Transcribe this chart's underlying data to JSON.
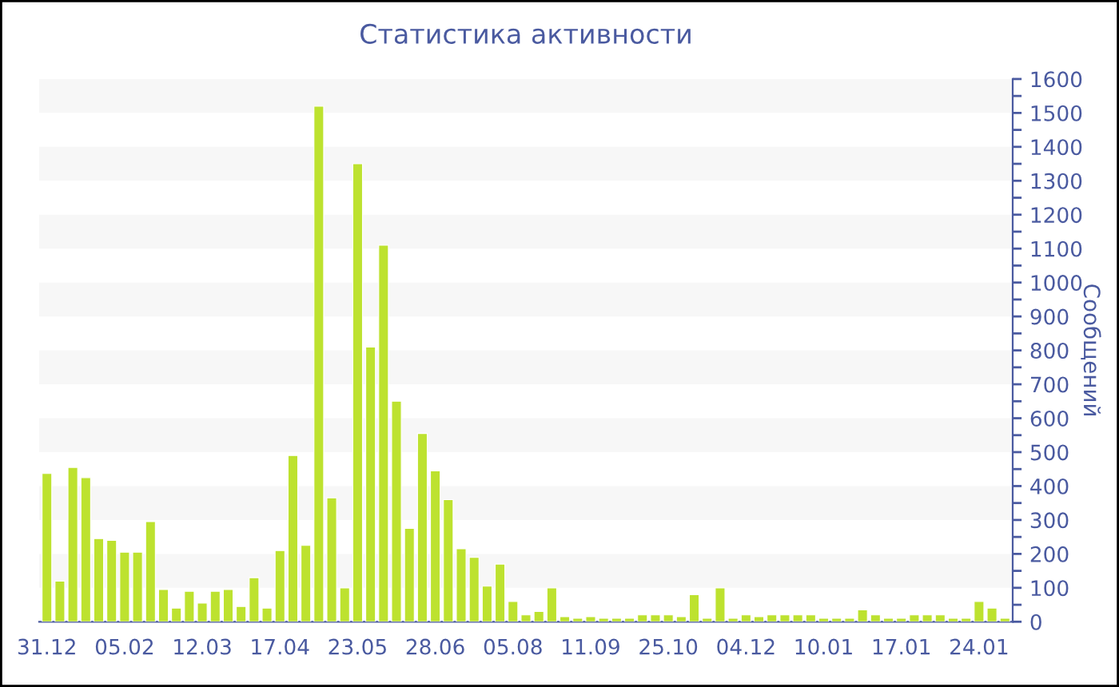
{
  "chart_data": {
    "type": "bar",
    "title": "Статистика активности",
    "ylabel": "Сообщений",
    "categories": [
      "31.12",
      null,
      null,
      null,
      null,
      null,
      "05.02",
      null,
      null,
      null,
      null,
      null,
      "12.03",
      null,
      null,
      null,
      null,
      null,
      "17.04",
      null,
      null,
      null,
      null,
      null,
      "23.05",
      null,
      null,
      null,
      null,
      null,
      "28.06",
      null,
      null,
      null,
      null,
      null,
      "05.08",
      null,
      null,
      null,
      null,
      null,
      "11.09",
      null,
      null,
      null,
      null,
      null,
      "25.10",
      null,
      null,
      null,
      null,
      null,
      "04.12",
      null,
      null,
      null,
      null,
      null,
      "10.01",
      null,
      null,
      null,
      null,
      null,
      "17.01",
      null,
      null,
      null,
      null,
      null,
      "24.01",
      null,
      null
    ],
    "values": [
      437,
      120,
      455,
      425,
      245,
      240,
      205,
      205,
      295,
      95,
      40,
      90,
      55,
      90,
      95,
      45,
      130,
      40,
      210,
      490,
      225,
      1520,
      365,
      100,
      1350,
      810,
      1110,
      650,
      275,
      555,
      445,
      360,
      215,
      190,
      105,
      170,
      60,
      20,
      30,
      100,
      15,
      10,
      15,
      10,
      10,
      10,
      20,
      20,
      20,
      15,
      80,
      10,
      100,
      10,
      20,
      15,
      20,
      20,
      20,
      20,
      10,
      10,
      10,
      35,
      20,
      10,
      10,
      20,
      20,
      20,
      10,
      10,
      60,
      40,
      10
    ],
    "color": "#bde22f",
    "ylim": [
      0,
      1600
    ],
    "yticks": [
      {
        "value": 0,
        "label": "0"
      },
      {
        "value": 50,
        "label": null
      },
      100,
      {
        "value": 150,
        "label": null
      },
      200,
      {
        "value": 250,
        "label": null
      },
      300,
      {
        "value": 350,
        "label": null
      },
      400,
      {
        "value": 450,
        "label": null
      },
      500,
      {
        "value": 550,
        "label": null
      },
      600,
      {
        "value": 650,
        "label": null
      },
      700,
      {
        "value": 750,
        "label": null
      },
      800,
      {
        "value": 850,
        "label": null
      },
      900,
      {
        "value": 950,
        "label": null
      },
      1000,
      {
        "value": 1050,
        "label": null
      },
      1100,
      {
        "value": 1150,
        "label": null
      },
      1200,
      {
        "value": 1250,
        "label": null
      },
      1300,
      {
        "value": 1350,
        "label": null
      },
      1400,
      {
        "value": 1450,
        "label": null
      },
      1500,
      {
        "value": 1550,
        "label": null
      },
      1600
    ],
    "bands": [
      {
        "axis": "y",
        "from": 100,
        "to": 200,
        "color": "#f7f7f7"
      },
      {
        "axis": "y",
        "from": 300,
        "to": 400,
        "color": "#f7f7f7"
      },
      {
        "axis": "y",
        "from": 500,
        "to": 600,
        "color": "#f7f7f7"
      },
      {
        "axis": "y",
        "from": 700,
        "to": 800,
        "color": "#f7f7f7"
      },
      {
        "axis": "y",
        "from": 900,
        "to": 1000,
        "color": "#f7f7f7"
      },
      {
        "axis": "y",
        "from": 1100,
        "to": 1200,
        "color": "#f7f7f7"
      },
      {
        "axis": "y",
        "from": 1300,
        "to": 1400,
        "color": "#f7f7f7"
      },
      {
        "axis": "y",
        "from": 1500,
        "to": 1600,
        "color": "#f7f7f7"
      }
    ],
    "grid": false,
    "legend": false
  }
}
